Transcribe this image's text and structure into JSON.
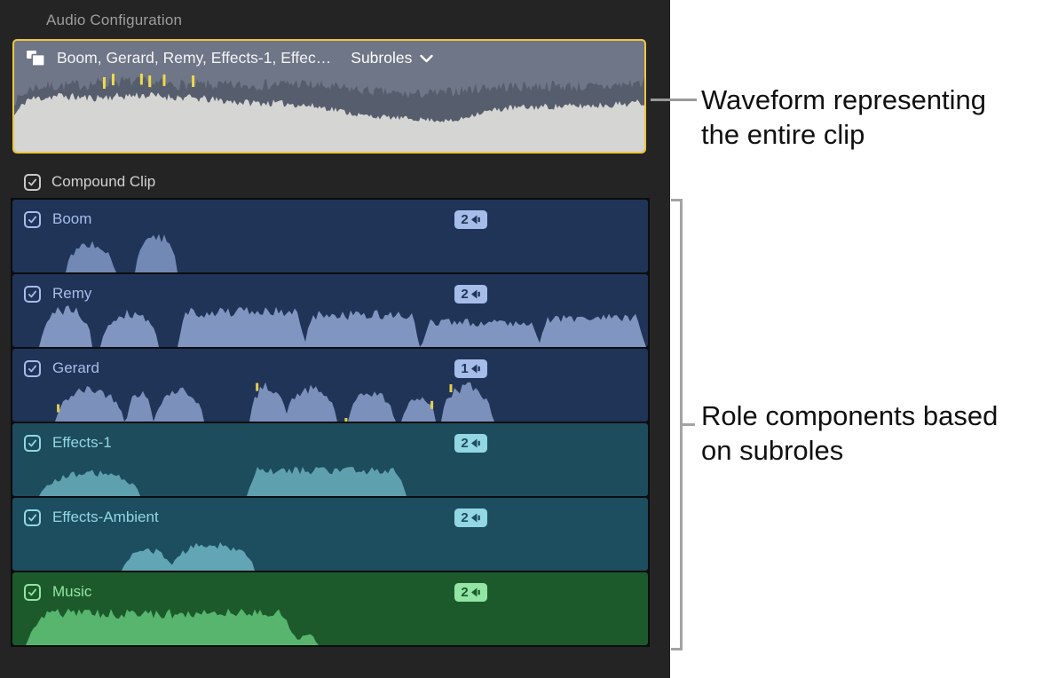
{
  "panel": {
    "title": "Audio Configuration",
    "clip": {
      "name": "Boom, Gerard, Remy, Effects-1, Effec…",
      "dropdown_label": "Subroles",
      "border_color": "#eec63d",
      "bg": "#6f7687",
      "wave_dark": "#565d6c",
      "wave_light": "#d5d5d3",
      "peak_color": "#eed84e",
      "dark_envelope": [
        [
          0,
          0.7
        ],
        [
          0.03,
          0.9
        ],
        [
          0.1,
          0.93
        ],
        [
          0.17,
          0.98
        ],
        [
          0.25,
          0.94
        ],
        [
          0.35,
          0.92
        ],
        [
          0.45,
          0.95
        ],
        [
          0.5,
          0.9
        ],
        [
          0.56,
          0.85
        ],
        [
          0.62,
          0.8
        ],
        [
          0.68,
          0.82
        ],
        [
          0.75,
          0.9
        ],
        [
          0.85,
          0.92
        ],
        [
          0.93,
          0.9
        ],
        [
          1,
          0.97
        ]
      ],
      "light_envelope": [
        [
          0,
          0.5
        ],
        [
          0.02,
          0.72
        ],
        [
          0.07,
          0.77
        ],
        [
          0.12,
          0.74
        ],
        [
          0.2,
          0.78
        ],
        [
          0.28,
          0.74
        ],
        [
          0.36,
          0.68
        ],
        [
          0.44,
          0.66
        ],
        [
          0.5,
          0.6
        ],
        [
          0.55,
          0.5
        ],
        [
          0.6,
          0.47
        ],
        [
          0.66,
          0.44
        ],
        [
          0.7,
          0.42
        ],
        [
          0.73,
          0.52
        ],
        [
          0.78,
          0.6
        ],
        [
          0.84,
          0.62
        ],
        [
          0.9,
          0.63
        ],
        [
          0.95,
          0.65
        ],
        [
          1,
          0.68
        ]
      ],
      "peaks": [
        0.143,
        0.157,
        0.202,
        0.215,
        0.238,
        0.284
      ]
    },
    "compound": {
      "label": "Compound Clip",
      "checked": true,
      "accent": "#c9c9c9"
    },
    "rows": [
      {
        "label": "Boom",
        "channels": "2",
        "checked": true,
        "bg": "#203457",
        "accent": "#a6bdea",
        "wave": "#7189b4",
        "segments": [
          [
            0.085,
            0.16,
            0.72,
            "bump"
          ],
          [
            0.195,
            0.258,
            0.92,
            "bump"
          ]
        ],
        "peaks": []
      },
      {
        "label": "Remy",
        "channels": "2",
        "checked": true,
        "bg": "#203457",
        "accent": "#a6bdea",
        "wave": "#8096c0",
        "segments": [
          [
            0.045,
            0.125,
            0.95,
            "bump"
          ],
          [
            0.14,
            0.23,
            0.85,
            "bump"
          ],
          [
            0.26,
            0.46,
            0.88,
            "flat"
          ],
          [
            0.46,
            0.64,
            0.8,
            "flat"
          ],
          [
            0.645,
            0.83,
            0.62,
            "flat"
          ],
          [
            0.83,
            0.995,
            0.72,
            "flat"
          ]
        ],
        "peaks": []
      },
      {
        "label": "Gerard",
        "channels": "1",
        "checked": true,
        "bg": "#203457",
        "accent": "#a6bdea",
        "wave": "#7b91bb",
        "segments": [
          [
            0.07,
            0.175,
            0.8,
            "bump"
          ],
          [
            0.18,
            0.22,
            0.72,
            "bump"
          ],
          [
            0.225,
            0.3,
            0.78,
            "bump"
          ],
          [
            0.375,
            0.43,
            0.88,
            "bump"
          ],
          [
            0.43,
            0.51,
            0.8,
            "bump"
          ],
          [
            0.53,
            0.6,
            0.72,
            "bump"
          ],
          [
            0.615,
            0.665,
            0.6,
            "bump"
          ],
          [
            0.675,
            0.755,
            0.88,
            "bump"
          ]
        ],
        "peaks": [
          0.072,
          0.385,
          0.525,
          0.66,
          0.69
        ]
      },
      {
        "label": "Effects-1",
        "channels": "2",
        "checked": true,
        "bg": "#1d4c5c",
        "accent": "#93d6e4",
        "wave": "#5fa0af",
        "segments": [
          [
            0.045,
            0.2,
            0.58,
            "bump"
          ],
          [
            0.37,
            0.62,
            0.64,
            "flat"
          ]
        ],
        "peaks": []
      },
      {
        "label": "Effects-Ambient",
        "channels": "2",
        "checked": true,
        "bg": "#1c4e5f",
        "accent": "#93d6e4",
        "wave": "#62a5b4",
        "segments": [
          [
            0.175,
            0.25,
            0.52,
            "bump"
          ],
          [
            0.25,
            0.38,
            0.66,
            "bump"
          ]
        ],
        "peaks": []
      },
      {
        "label": "Music",
        "channels": "2",
        "checked": true,
        "bg": "#1d5a2b",
        "accent": "#92e5a5",
        "wave": "#57b56e",
        "segments": [
          [
            0.022,
            0.45,
            0.8,
            "flat"
          ],
          [
            0.45,
            0.478,
            0.3,
            "bump"
          ]
        ],
        "peaks": []
      }
    ]
  },
  "annotations": {
    "waveform_note": {
      "line1": "Waveform representing",
      "line2": "the entire clip"
    },
    "roles_note": {
      "line1": "Role components based",
      "line2": "on subroles"
    }
  }
}
